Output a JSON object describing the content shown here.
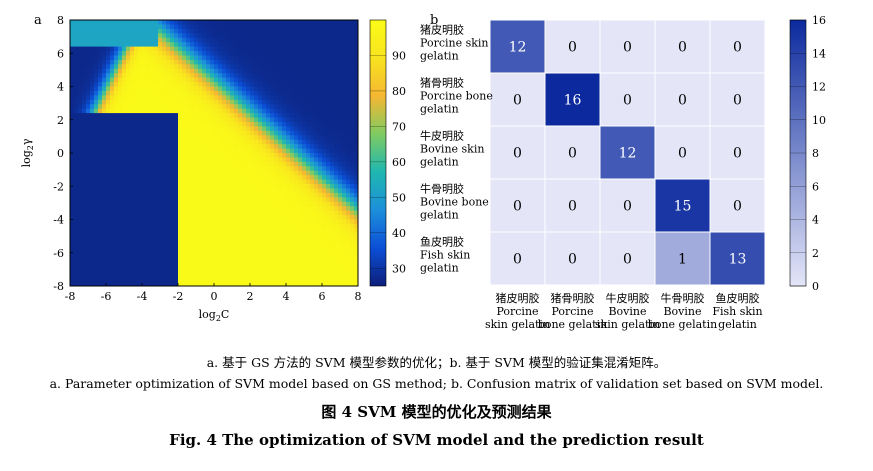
{
  "figure": {
    "panel_a_label": "a",
    "panel_b_label": "b",
    "caption_cn_sub": "a. 基于 GS 方法的 SVM 模型参数的优化；b. 基于 SVM 模型的验证集混淆矩阵。",
    "caption_en_sub": "a. Parameter optimization of SVM model based on GS method; b. Confusion matrix of validation set based on SVM model.",
    "caption_cn_title": "图 4   SVM 模型的优化及预测结果",
    "caption_en_title": "Fig. 4   The optimization of SVM model and the prediction result"
  },
  "chart_data": [
    {
      "type": "heatmap",
      "panel": "a",
      "xlabel": "log2C",
      "ylabel": "log2γ",
      "xlim": [
        -8,
        8
      ],
      "ylim": [
        -8,
        8
      ],
      "x_ticks": [
        -8,
        -6,
        -4,
        -2,
        0,
        2,
        4,
        6,
        8
      ],
      "y_ticks": [
        -8,
        -6,
        -4,
        -2,
        0,
        2,
        4,
        6,
        8
      ],
      "colorbar": {
        "ticks": [
          30,
          40,
          50,
          60,
          70,
          80,
          90
        ],
        "range": [
          25,
          100
        ]
      },
      "description_values": {
        "low_region_value": 27,
        "high_region_value": 99
      },
      "colormap": [
        "#0d1f7a",
        "#0b4fd6",
        "#1d8fdb",
        "#1fb7b0",
        "#7fcb62",
        "#f5b732",
        "#f8e31f",
        "#fafc17"
      ]
    },
    {
      "type": "heatmap",
      "panel": "b",
      "row_labels": [
        [
          "猪皮明胶",
          "Porcine skin",
          "gelatin"
        ],
        [
          "猪骨明胶",
          "Porcine bone",
          "gelatin"
        ],
        [
          "牛皮明胶",
          "Bovine skin",
          "gelatin"
        ],
        [
          "牛骨明胶",
          "Bovine bone",
          "gelatin"
        ],
        [
          "鱼皮明胶",
          "Fish skin",
          "gelatin"
        ]
      ],
      "col_labels": [
        [
          "猪皮明胶",
          "Porcine",
          "skin gelatin"
        ],
        [
          "猪骨明胶",
          "Porcine",
          "bone gelatin"
        ],
        [
          "牛皮明胶",
          "Bovine",
          "skin gelatin"
        ],
        [
          "牛骨明胶",
          "Bovine",
          "bone gelatin"
        ],
        [
          "鱼皮明胶",
          "Fish skin",
          "gelatin"
        ]
      ],
      "values": [
        [
          12,
          0,
          0,
          0,
          0
        ],
        [
          0,
          16,
          0,
          0,
          0
        ],
        [
          0,
          0,
          12,
          0,
          0
        ],
        [
          0,
          0,
          0,
          15,
          0
        ],
        [
          0,
          0,
          0,
          1,
          13
        ]
      ],
      "colorbar": {
        "ticks": [
          0,
          2,
          4,
          6,
          8,
          10,
          12,
          14,
          16
        ],
        "range": [
          0,
          16
        ]
      },
      "colors": {
        "min": "#e4e6f8",
        "max": "#0c2a9e"
      }
    }
  ]
}
